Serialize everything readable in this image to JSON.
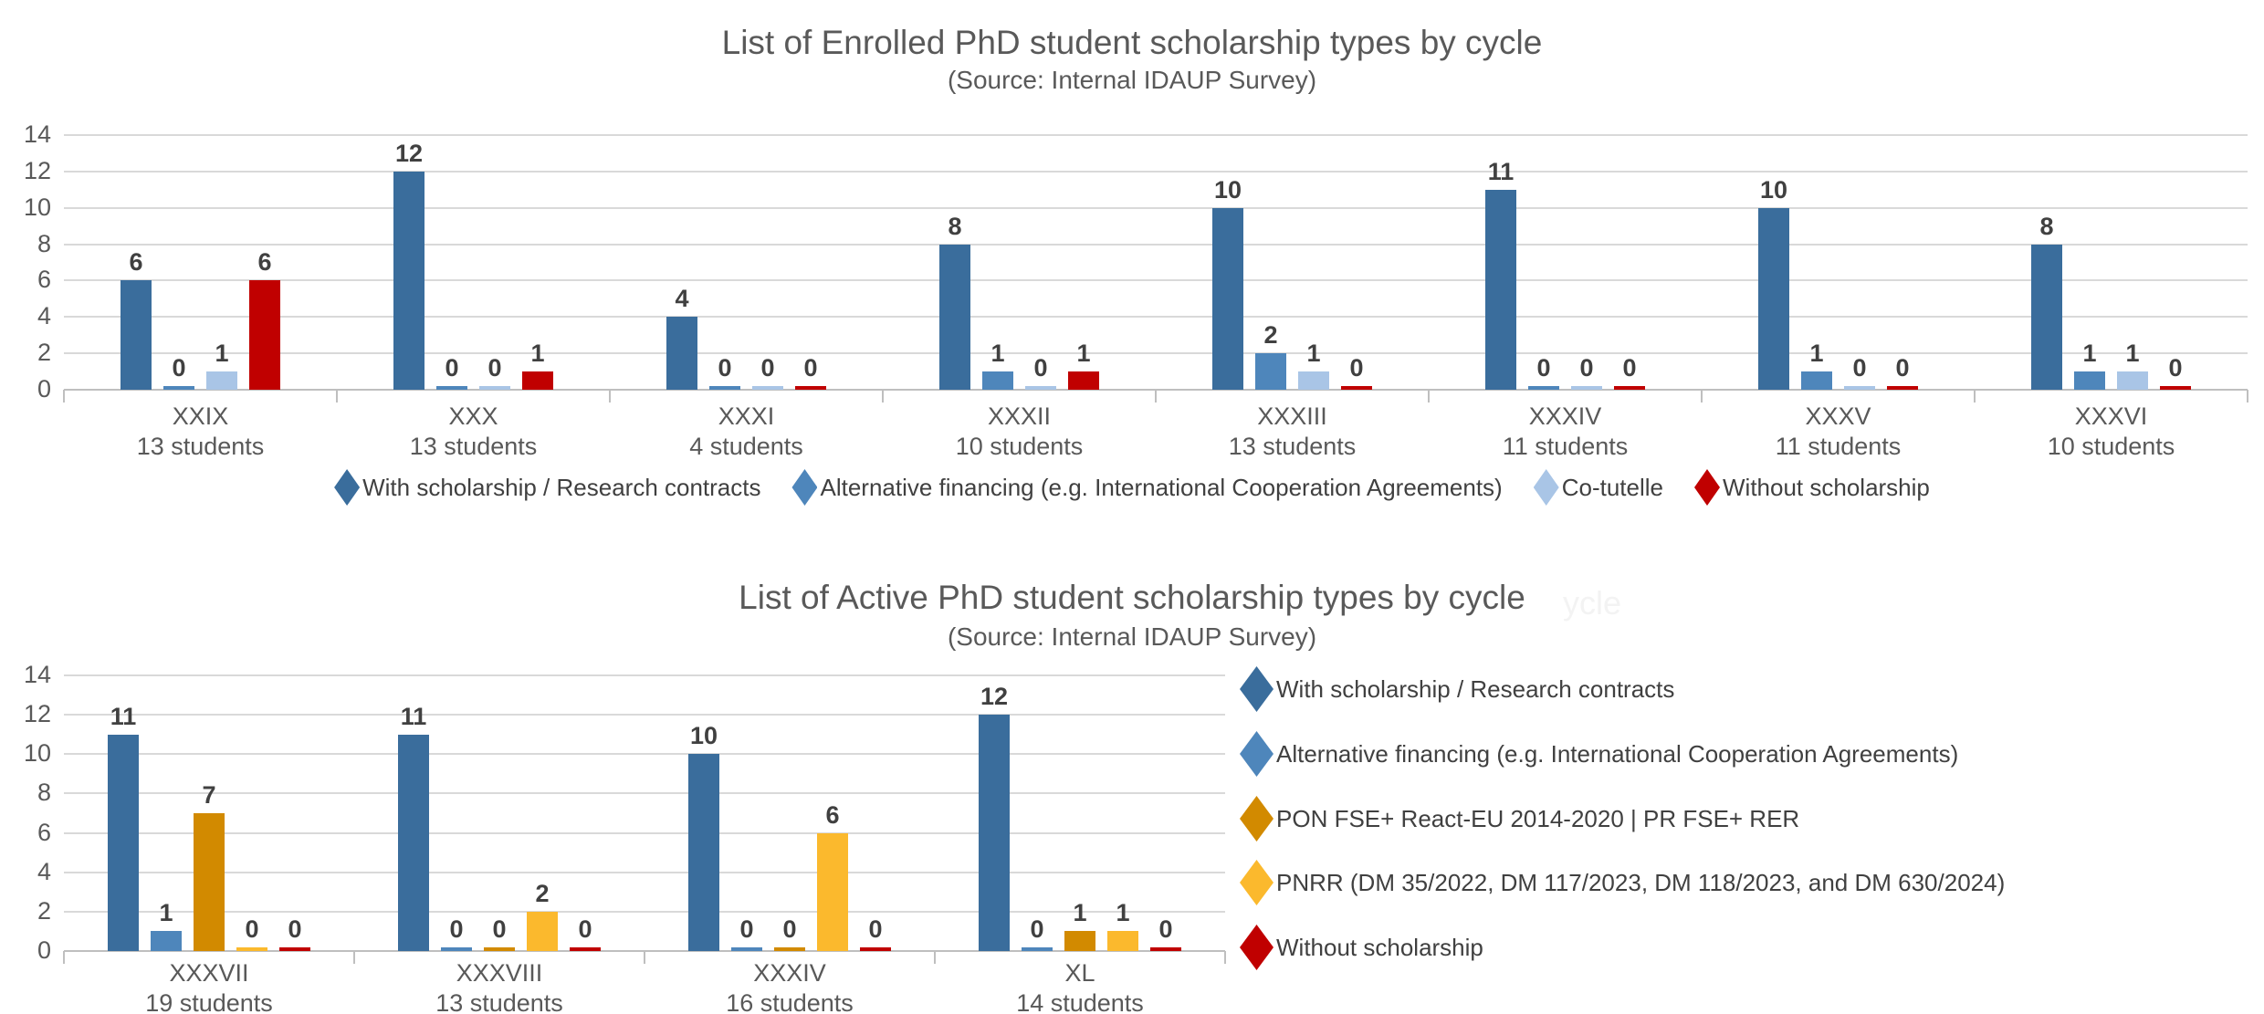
{
  "page": {
    "background": "#ffffff",
    "text_color": "#595959",
    "value_label_color": "#404040",
    "gridline_color": "#d9d9d9",
    "axis_color": "#bfbfbf"
  },
  "chart_data": [
    {
      "type": "bar",
      "title": "List of Enrolled PhD student scholarship types by cycle",
      "subtitle": "(Source: Internal IDAUP Survey)",
      "ylim": [
        0,
        14
      ],
      "ytick_step": 2,
      "yticks": [
        0,
        2,
        4,
        6,
        8,
        10,
        12,
        14
      ],
      "grid": true,
      "legend_position": "bottom",
      "categories": [
        "XXIX",
        "XXX",
        "XXXI",
        "XXXII",
        "XXXIII",
        "XXXIV",
        "XXXV",
        "XXXVI"
      ],
      "category_sublabels": [
        "13 students",
        "13 students",
        "4 students",
        "10 students",
        "13 students",
        "11 students",
        "11 students",
        "10 students"
      ],
      "series": [
        {
          "name": "With scholarship / Research contracts",
          "color": "#3a6d9c",
          "values": [
            6,
            12,
            4,
            8,
            10,
            11,
            10,
            8
          ]
        },
        {
          "name": "Alternative financing (e.g. International Cooperation Agreements)",
          "color": "#4e86bb",
          "values": [
            0,
            0,
            0,
            1,
            2,
            0,
            1,
            1
          ]
        },
        {
          "name": "Co-tutelle",
          "color": "#a9c5e6",
          "values": [
            1,
            0,
            0,
            0,
            1,
            0,
            0,
            1
          ]
        },
        {
          "name": "Without scholarship",
          "color": "#c00000",
          "values": [
            6,
            1,
            0,
            1,
            0,
            0,
            0,
            0
          ]
        }
      ]
    },
    {
      "type": "bar",
      "title": "List of Active PhD student scholarship types by cycle",
      "ghost_text": "ycle",
      "subtitle": "(Source: Internal IDAUP Survey)",
      "ylim": [
        0,
        14
      ],
      "ytick_step": 2,
      "yticks": [
        0,
        2,
        4,
        6,
        8,
        10,
        12,
        14
      ],
      "grid": true,
      "legend_position": "right",
      "categories": [
        "XXXVII",
        "XXXVIII",
        "XXXIV",
        "XL"
      ],
      "category_sublabels": [
        "19 students",
        "13 students",
        "16 students",
        "14 students"
      ],
      "series": [
        {
          "name": "With scholarship / Research contracts",
          "color": "#3a6d9c",
          "values": [
            11,
            11,
            10,
            12
          ]
        },
        {
          "name": "Alternative financing (e.g. International Cooperation Agreements)",
          "color": "#4e86bb",
          "values": [
            1,
            0,
            0,
            0
          ]
        },
        {
          "name": "PON FSE+ React-EU 2014-2020  |  PR FSE+ RER",
          "color": "#d28a00",
          "values": [
            7,
            0,
            0,
            1
          ]
        },
        {
          "name": "PNRR (DM 35/2022, DM 117/2023,  DM 118/2023, and DM 630/2024)",
          "color": "#fbb92d",
          "values": [
            0,
            2,
            6,
            1
          ]
        },
        {
          "name": "Without scholarship",
          "color": "#c00000",
          "values": [
            0,
            0,
            0,
            0
          ]
        }
      ]
    }
  ]
}
